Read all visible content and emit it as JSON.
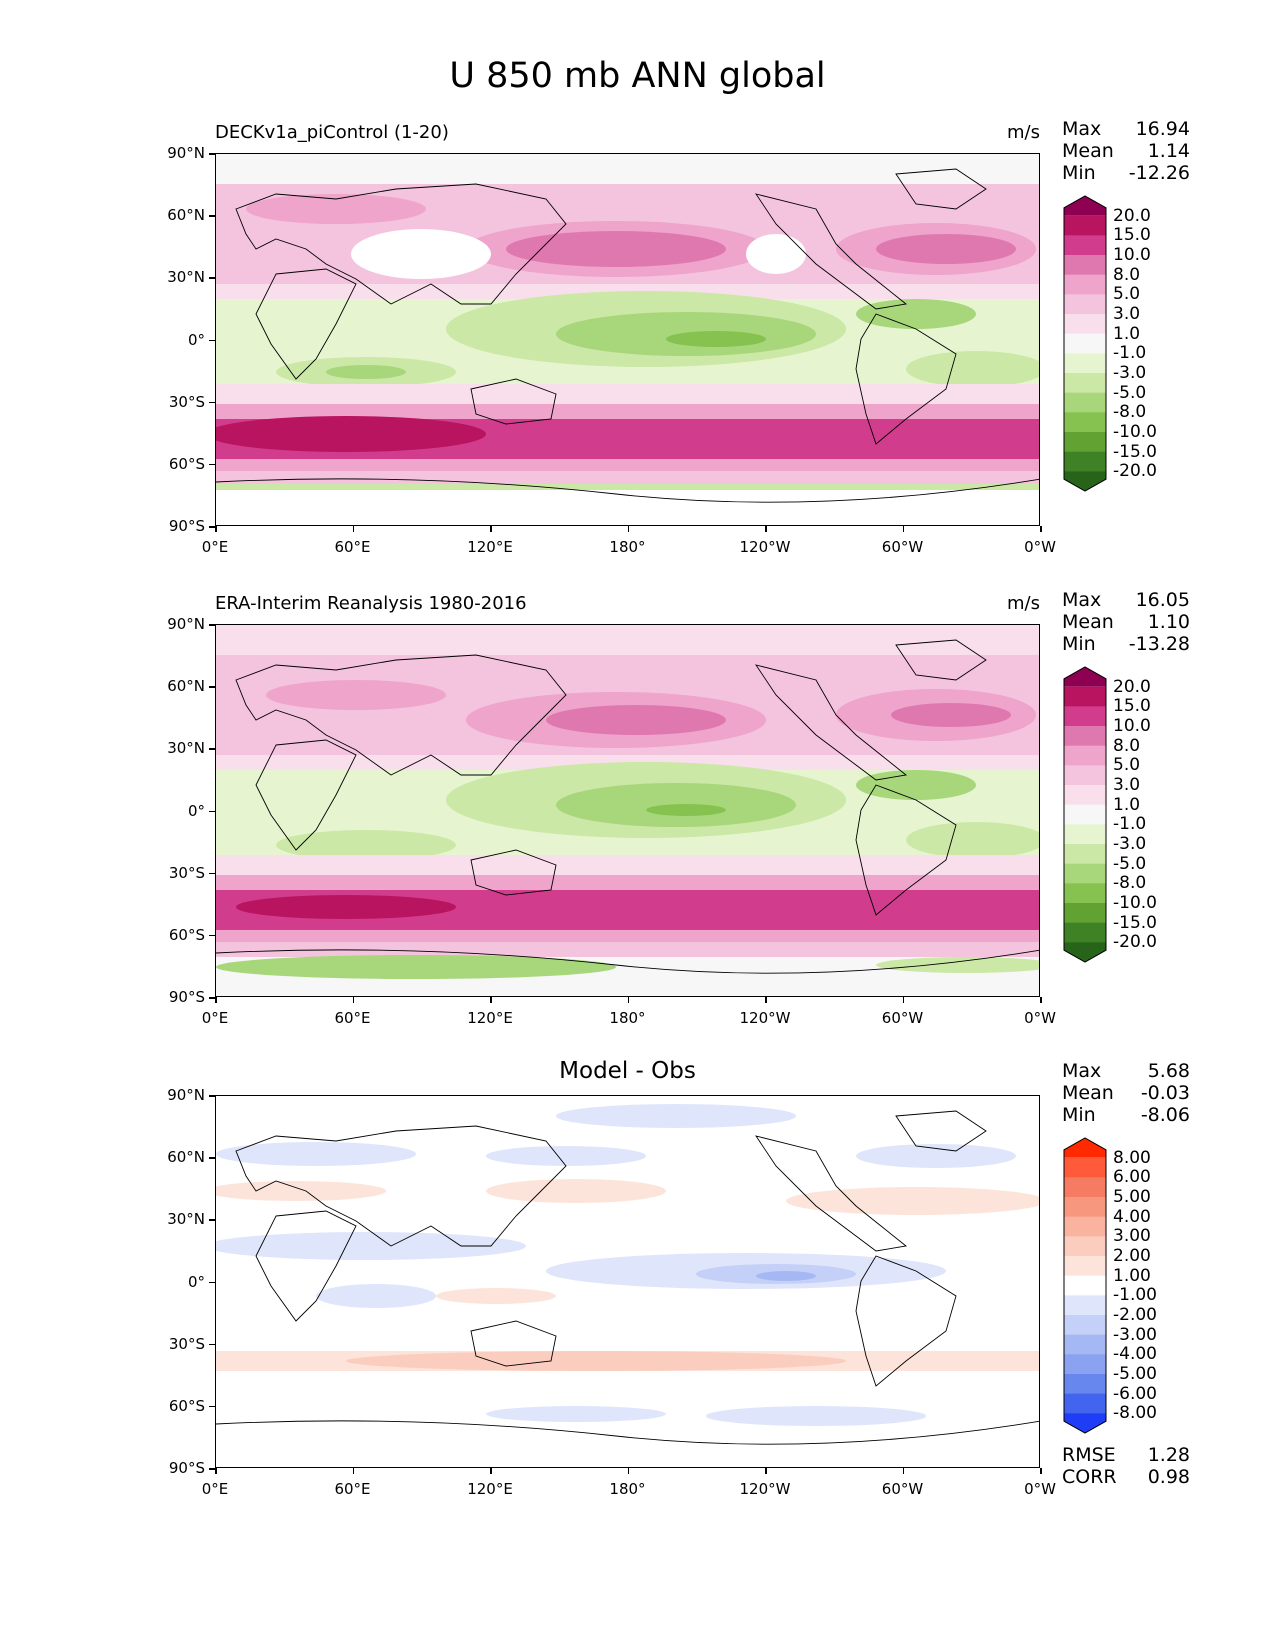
{
  "title": "U 850 mb ANN global",
  "axes": {
    "lat_ticks": [
      "90°N",
      "60°N",
      "30°N",
      "0°",
      "30°S",
      "60°S",
      "90°S"
    ],
    "lon_ticks": [
      "0°E",
      "60°E",
      "120°E",
      "180°",
      "120°W",
      "60°W",
      "0°W"
    ]
  },
  "panels": [
    {
      "title": "DECKv1a_piControl (1-20)",
      "units": "m/s",
      "stats": [
        {
          "label": "Max",
          "value": "16.94"
        },
        {
          "label": "Mean",
          "value": "1.14"
        },
        {
          "label": "Min",
          "value": "-12.26"
        }
      ]
    },
    {
      "title": "ERA-Interim Reanalysis 1980-2016",
      "units": "m/s",
      "stats": [
        {
          "label": "Max",
          "value": "16.05"
        },
        {
          "label": "Mean",
          "value": "1.10"
        },
        {
          "label": "Min",
          "value": "-13.28"
        }
      ]
    },
    {
      "title": "Model - Obs",
      "units": "",
      "stats": [
        {
          "label": "Max",
          "value": "5.68"
        },
        {
          "label": "Mean",
          "value": "-0.03"
        },
        {
          "label": "Min",
          "value": "-8.06"
        }
      ],
      "metrics": [
        {
          "label": "RMSE",
          "value": "1.28"
        },
        {
          "label": "CORR",
          "value": "0.98"
        }
      ]
    }
  ],
  "colorbars": {
    "field": {
      "levels": [
        "20.0",
        "15.0",
        "10.0",
        "8.0",
        "5.0",
        "3.0",
        "1.0",
        "-1.0",
        "-3.0",
        "-5.0",
        "-8.0",
        "-10.0",
        "-15.0",
        "-20.0"
      ],
      "colors": [
        "#8e0152",
        "#b8145f",
        "#d13c8c",
        "#e078b0",
        "#eea4cb",
        "#f4c3de",
        "#f9dfec",
        "#f7f7f7",
        "#e6f5d0",
        "#cbe8a6",
        "#a7d77a",
        "#86c24f",
        "#62a233",
        "#3f8225",
        "#276419"
      ]
    },
    "diff": {
      "levels": [
        "8.00",
        "6.00",
        "5.00",
        "4.00",
        "3.00",
        "2.00",
        "1.00",
        "-1.00",
        "-2.00",
        "-3.00",
        "-4.00",
        "-5.00",
        "-6.00",
        "-8.00"
      ],
      "colors": [
        "#ff2a00",
        "#ff5a3a",
        "#f57c62",
        "#f7977e",
        "#f9b39f",
        "#fbcdbf",
        "#fde4db",
        "#ffffff",
        "#dfe6fb",
        "#c4d0f7",
        "#a6b8f4",
        "#8aa2f0",
        "#6787ee",
        "#4264ee",
        "#1f3df5"
      ]
    }
  }
}
